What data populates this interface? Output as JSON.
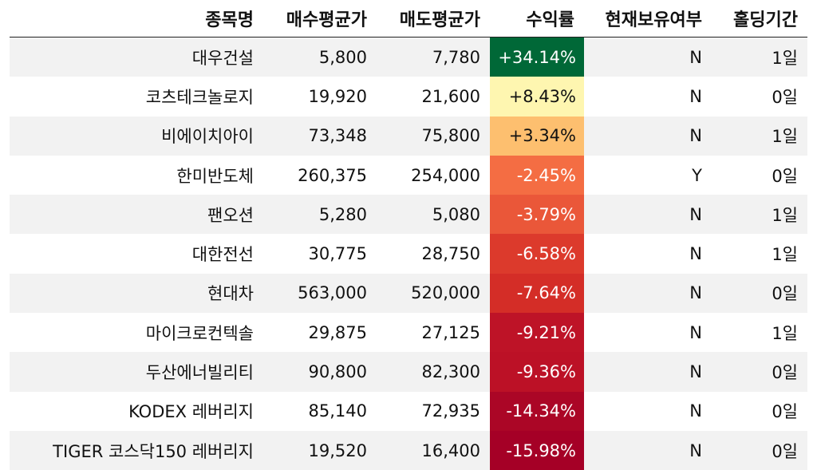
{
  "chart_data": {
    "type": "table",
    "columns": [
      "종목명",
      "매수평균가",
      "매도평균가",
      "수익률",
      "현재보유여부",
      "홀딩기간"
    ],
    "rows": [
      {
        "name": "대우건설",
        "buy": "5,800",
        "sell": "7,780",
        "return_text": "+34.14%",
        "return": 34.14,
        "holding": "N",
        "days": "1일"
      },
      {
        "name": "코츠테크놀로지",
        "buy": "19,920",
        "sell": "21,600",
        "return_text": "+8.43%",
        "return": 8.43,
        "holding": "N",
        "days": "0일"
      },
      {
        "name": "비에이치아이",
        "buy": "73,348",
        "sell": "75,800",
        "return_text": "+3.34%",
        "return": 3.34,
        "holding": "N",
        "days": "1일"
      },
      {
        "name": "한미반도체",
        "buy": "260,375",
        "sell": "254,000",
        "return_text": "-2.45%",
        "return": -2.45,
        "holding": "Y",
        "days": "0일"
      },
      {
        "name": "팬오션",
        "buy": "5,280",
        "sell": "5,080",
        "return_text": "-3.79%",
        "return": -3.79,
        "holding": "N",
        "days": "1일"
      },
      {
        "name": "대한전선",
        "buy": "30,775",
        "sell": "28,750",
        "return_text": "-6.58%",
        "return": -6.58,
        "holding": "N",
        "days": "1일"
      },
      {
        "name": "현대차",
        "buy": "563,000",
        "sell": "520,000",
        "return_text": "-7.64%",
        "return": -7.64,
        "holding": "N",
        "days": "0일"
      },
      {
        "name": "마이크로컨텍솔",
        "buy": "29,875",
        "sell": "27,125",
        "return_text": "-9.21%",
        "return": -9.21,
        "holding": "N",
        "days": "1일"
      },
      {
        "name": "두산에너빌리티",
        "buy": "90,800",
        "sell": "82,300",
        "return_text": "-9.36%",
        "return": -9.36,
        "holding": "N",
        "days": "0일"
      },
      {
        "name": "KODEX 레버리지",
        "buy": "85,140",
        "sell": "72,935",
        "return_text": "-14.34%",
        "return": -14.34,
        "holding": "N",
        "days": "0일"
      },
      {
        "name": "TIGER 코스닥150 레버리지",
        "buy": "19,520",
        "sell": "16,400",
        "return_text": "-15.98%",
        "return": -15.98,
        "holding": "N",
        "days": "0일"
      }
    ],
    "return_colors": [
      "#006837",
      "#fef6b0",
      "#fdbf6f",
      "#f46d43",
      "#ea5739",
      "#dc3a2c",
      "#d42d27",
      "#be1327",
      "#bc1126",
      "#ab0626",
      "#a50026"
    ],
    "return_text_colors": [
      "#ffffff",
      "#111111",
      "#111111",
      "#ffffff",
      "#ffffff",
      "#ffffff",
      "#ffffff",
      "#ffffff",
      "#ffffff",
      "#ffffff",
      "#ffffff"
    ],
    "colormap": "RdYlGn"
  }
}
